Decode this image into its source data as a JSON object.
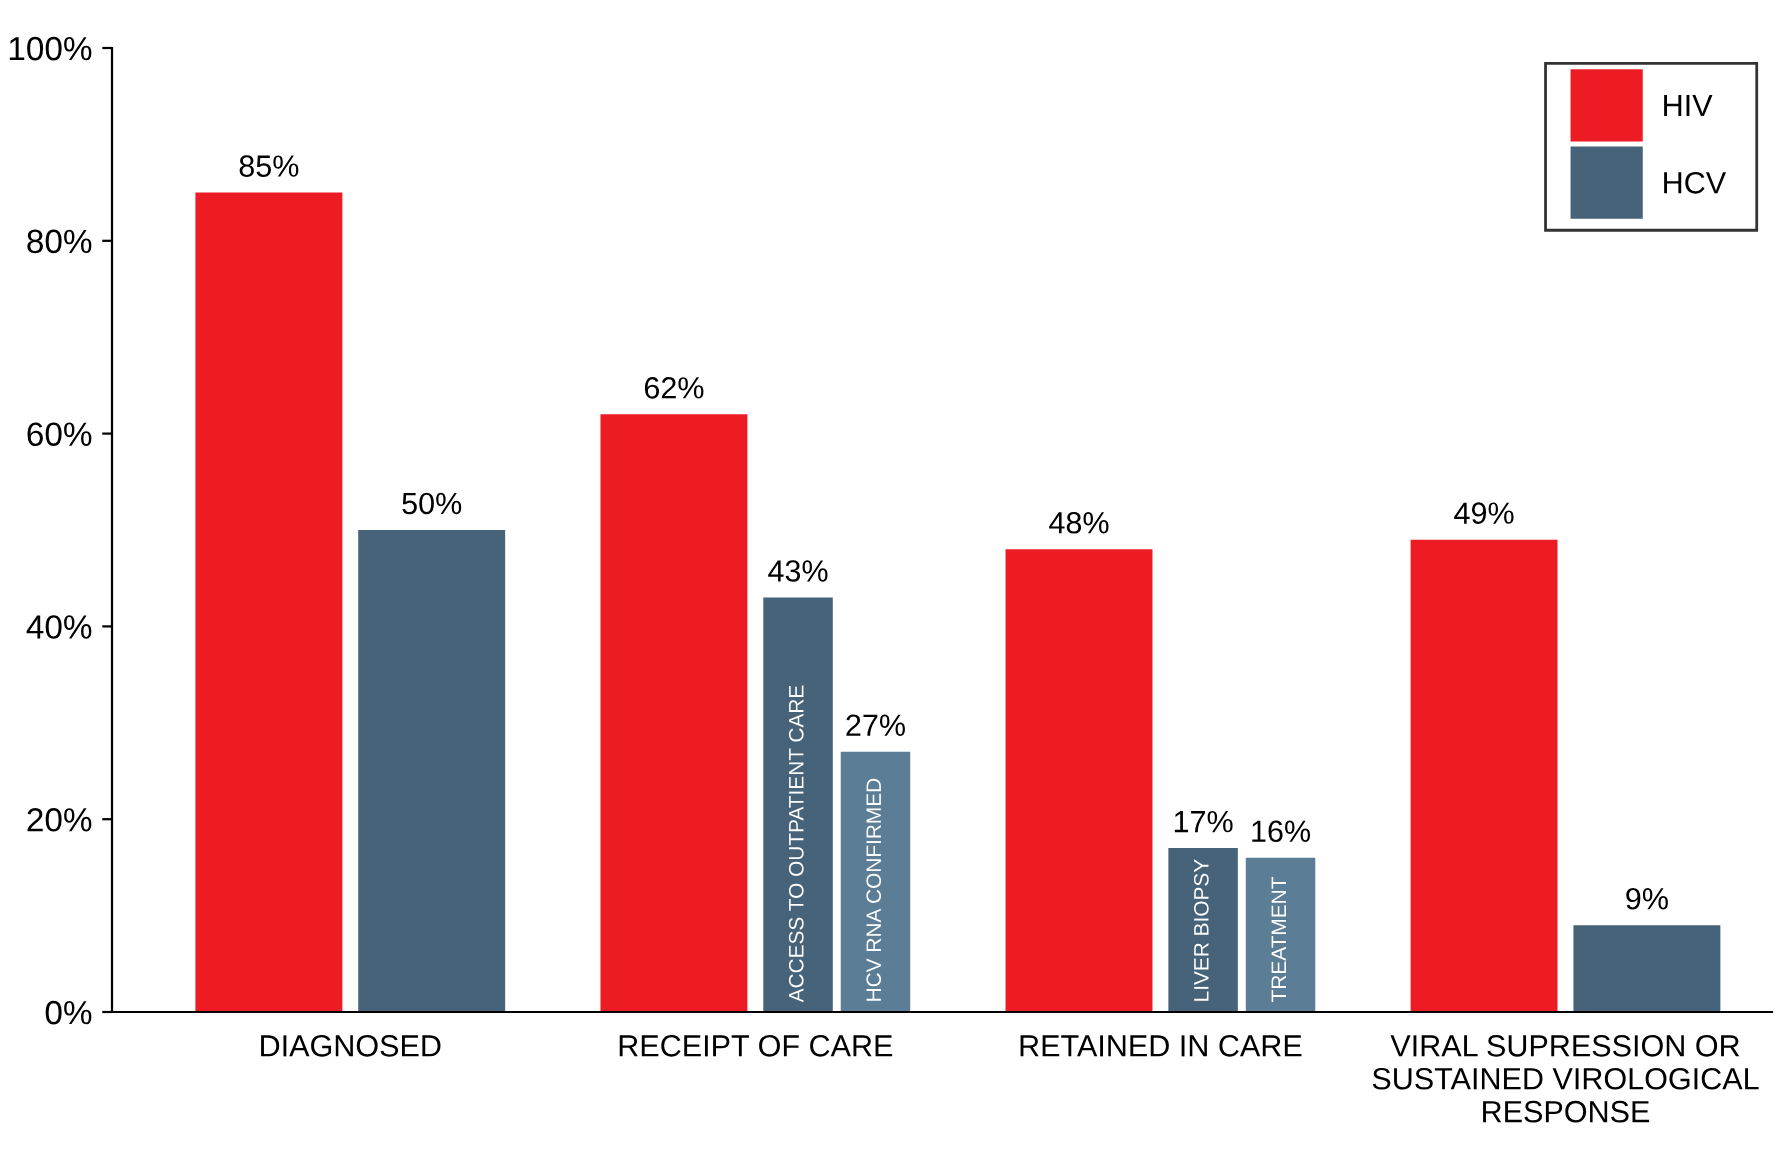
{
  "chart_data": {
    "type": "bar",
    "categories": [
      "DIAGNOSED",
      "RECEIPT OF CARE",
      "RETAINED IN CARE",
      "VIRAL SUPRESSION OR\nSUSTAINED VIROLOGICAL\nRESPONSE"
    ],
    "series": [
      {
        "name": "HIV",
        "color": "#ed1c24",
        "values": [
          85,
          62,
          48,
          49
        ],
        "value_labels": [
          "85%",
          "62%",
          "48%",
          "49%"
        ]
      },
      {
        "name": "HCV",
        "color": "#46637a",
        "values": [
          50,
          43,
          17,
          9
        ],
        "value_labels": [
          "50%",
          "43%",
          "17%",
          "9%"
        ]
      },
      {
        "color": "#5b7d96",
        "values": [
          null,
          27,
          16,
          null
        ],
        "value_labels": [
          null,
          "27%",
          "16%",
          null
        ]
      }
    ],
    "annotations": [
      "ACCESS TO OUTPATIENT CARE",
      "HCV RNA CONFIRMED",
      "LIVER BIOPSY",
      "TREATMENT"
    ],
    "ylim": [
      0,
      100
    ],
    "yticks": [
      {
        "value": 0,
        "label": "0%"
      },
      {
        "value": 20,
        "label": "20%"
      },
      {
        "value": 40,
        "label": "40%"
      },
      {
        "value": 60,
        "label": "60%"
      },
      {
        "value": 80,
        "label": "80%"
      },
      {
        "value": 100,
        "label": "100%"
      }
    ],
    "legend": "top right",
    "grid": false
  }
}
